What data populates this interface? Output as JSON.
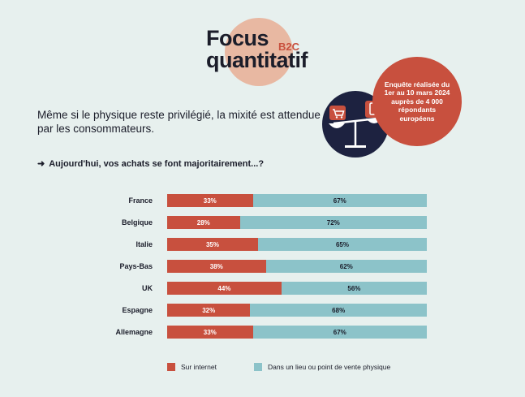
{
  "header": {
    "title_line1": "Focus",
    "title_line2": "quantitatif",
    "tag": "B2C"
  },
  "survey": {
    "text": "Enquête réalisée du 1er au 10 mars 2024 auprès de 4 000 répondants européens",
    "icons": [
      "shopping-cart-icon",
      "smartphone-icon",
      "balance-scale-icon"
    ]
  },
  "intro": "Même si le physique reste privilégié, la mixité est attendue par les consommateurs.",
  "question": {
    "arrow": "➜",
    "text": "Aujourd'hui, vos achats se font majoritairement...?"
  },
  "colors": {
    "internet": "#c8503e",
    "physique": "#8cc3c9",
    "background": "#e7f0ee",
    "navy": "#1d2240"
  },
  "chart_data": {
    "type": "bar",
    "stacked": true,
    "orientation": "horizontal",
    "categories": [
      "France",
      "Belgique",
      "Italie",
      "Pays-Bas",
      "UK",
      "Espagne",
      "Allemagne"
    ],
    "series": [
      {
        "name": "Sur internet",
        "values": [
          33,
          28,
          35,
          38,
          44,
          32,
          33
        ],
        "labels": [
          "33%",
          "28%",
          "35%",
          "38%",
          "44%",
          "32%",
          "33%"
        ]
      },
      {
        "name": "Dans un lieu ou point de vente physique",
        "values": [
          67,
          72,
          65,
          62,
          56,
          68,
          67
        ],
        "labels": [
          "67%",
          "72%",
          "65%",
          "62%",
          "56%",
          "68%",
          "67%"
        ]
      }
    ],
    "xlim": [
      0,
      100
    ],
    "legend": "bottom"
  }
}
